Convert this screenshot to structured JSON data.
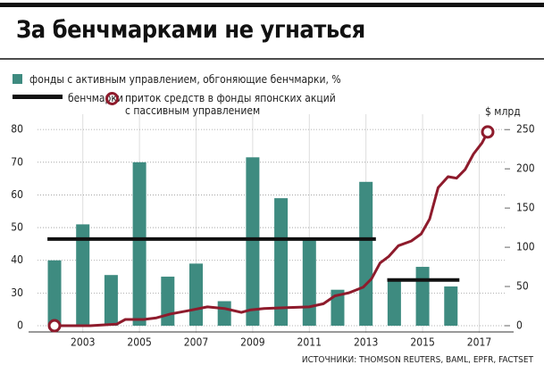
{
  "chart_data": {
    "type": "bar",
    "title": "За бенчмарками не угнаться",
    "y2_label": "$ млрд",
    "source": "ИСТОЧНИКИ: THOMSON REUTERS, BAML, EPFR, FACTSET",
    "xlim": [
      2001.4,
      2017.9
    ],
    "xticks": [
      2003,
      2005,
      2007,
      2009,
      2011,
      2013,
      2015,
      2017
    ],
    "ylim": [
      0,
      82.5
    ],
    "yticks": [
      0,
      30,
      40,
      50,
      60,
      70,
      80
    ],
    "y2lim": [
      0,
      260.5
    ],
    "y2ticks": [
      0,
      50,
      100,
      150,
      200,
      250
    ],
    "grid": true,
    "series": [
      {
        "name": "фонды с активным управлением, обгоняющие бенчмарки, %",
        "type": "bar",
        "color": "#3e8b80",
        "x": [
          2002,
          2003,
          2004,
          2005,
          2006,
          2007,
          2008,
          2009,
          2010,
          2011,
          2012,
          2013,
          2014,
          2015,
          2016
        ],
        "values": [
          40,
          51,
          35.5,
          70,
          35,
          39,
          22.5,
          71.5,
          59,
          46.5,
          31,
          64,
          34,
          38,
          32
        ]
      },
      {
        "name": "бенчмарки",
        "type": "line",
        "color": "#111111",
        "x": [
          2001.75,
          2013.35,
          2013.55,
          2013.75,
          2016.3
        ],
        "values": [
          46.5,
          46.5,
          null,
          34,
          34
        ]
      },
      {
        "name": "приток средств в фонды японских акций\nс пассивным управлением",
        "type": "line",
        "axis": "y2",
        "color": "#8e1b2c",
        "end_markers": true,
        "x": [
          2002.0,
          2003.26,
          2004.2,
          2004.5,
          2005.15,
          2005.6,
          2006.1,
          2006.7,
          2007.4,
          2008.0,
          2008.6,
          2008.9,
          2009.4,
          2010.2,
          2011.0,
          2011.5,
          2011.9,
          2012.4,
          2012.9,
          2013.2,
          2013.5,
          2013.8,
          2014.15,
          2014.6,
          2014.95,
          2015.25,
          2015.55,
          2015.9,
          2016.2,
          2016.5,
          2016.8,
          2017.1,
          2017.3
        ],
        "values": [
          0,
          0,
          2,
          8,
          8,
          10,
          15,
          19,
          24,
          22,
          17,
          20,
          22,
          23,
          24,
          28,
          38,
          42,
          49,
          60,
          80,
          88,
          102,
          108,
          117,
          136,
          176,
          190,
          188,
          199,
          219,
          233,
          247
        ]
      }
    ]
  }
}
